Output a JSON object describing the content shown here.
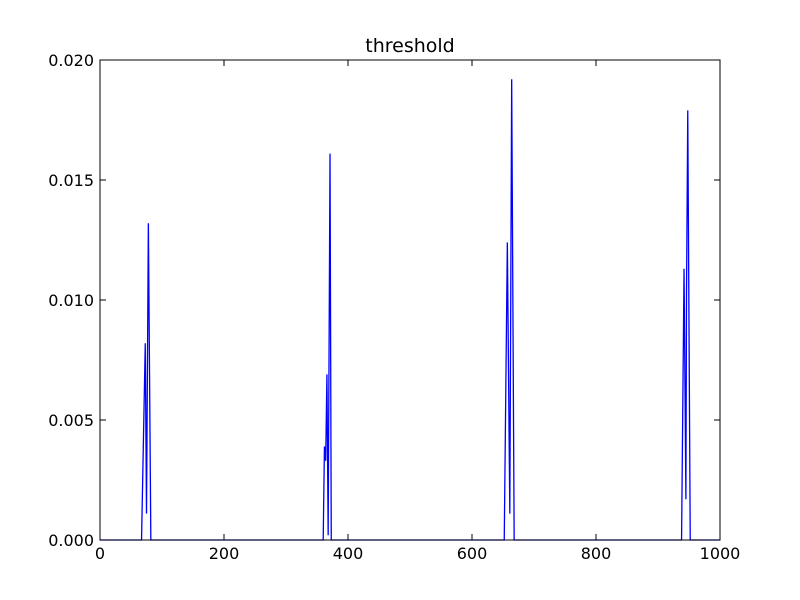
{
  "chart_data": {
    "type": "line",
    "title": "threshold",
    "xlabel": "",
    "ylabel": "",
    "xlim": [
      0,
      1000
    ],
    "ylim": [
      0,
      0.02
    ],
    "grid": false,
    "xticks": [
      0,
      200,
      400,
      600,
      800,
      1000
    ],
    "xtick_labels": [
      "0",
      "200",
      "400",
      "600",
      "800",
      "1000"
    ],
    "yticks": [
      0,
      0.005,
      0.01,
      0.015,
      0.02
    ],
    "ytick_labels": [
      "0.000",
      "0.005",
      "0.010",
      "0.015",
      "0.020"
    ],
    "series": [
      {
        "color": "#0000ff",
        "x": [
          0,
          67,
          73,
          75,
          78,
          82,
          360,
          362,
          364,
          366,
          368,
          371,
          373,
          377,
          652,
          657,
          661,
          664,
          668,
          938,
          942,
          945,
          946,
          948,
          952,
          1000
        ],
        "y": [
          0,
          0,
          0.0082,
          0.0011,
          0.0132,
          0,
          0,
          0.0039,
          0.0033,
          0.0069,
          0.0002,
          0.0161,
          0,
          0,
          0,
          0.0124,
          0.0011,
          0.0192,
          0,
          0,
          0.0113,
          0.0017,
          0.0103,
          0.0179,
          0,
          0
        ]
      }
    ]
  }
}
